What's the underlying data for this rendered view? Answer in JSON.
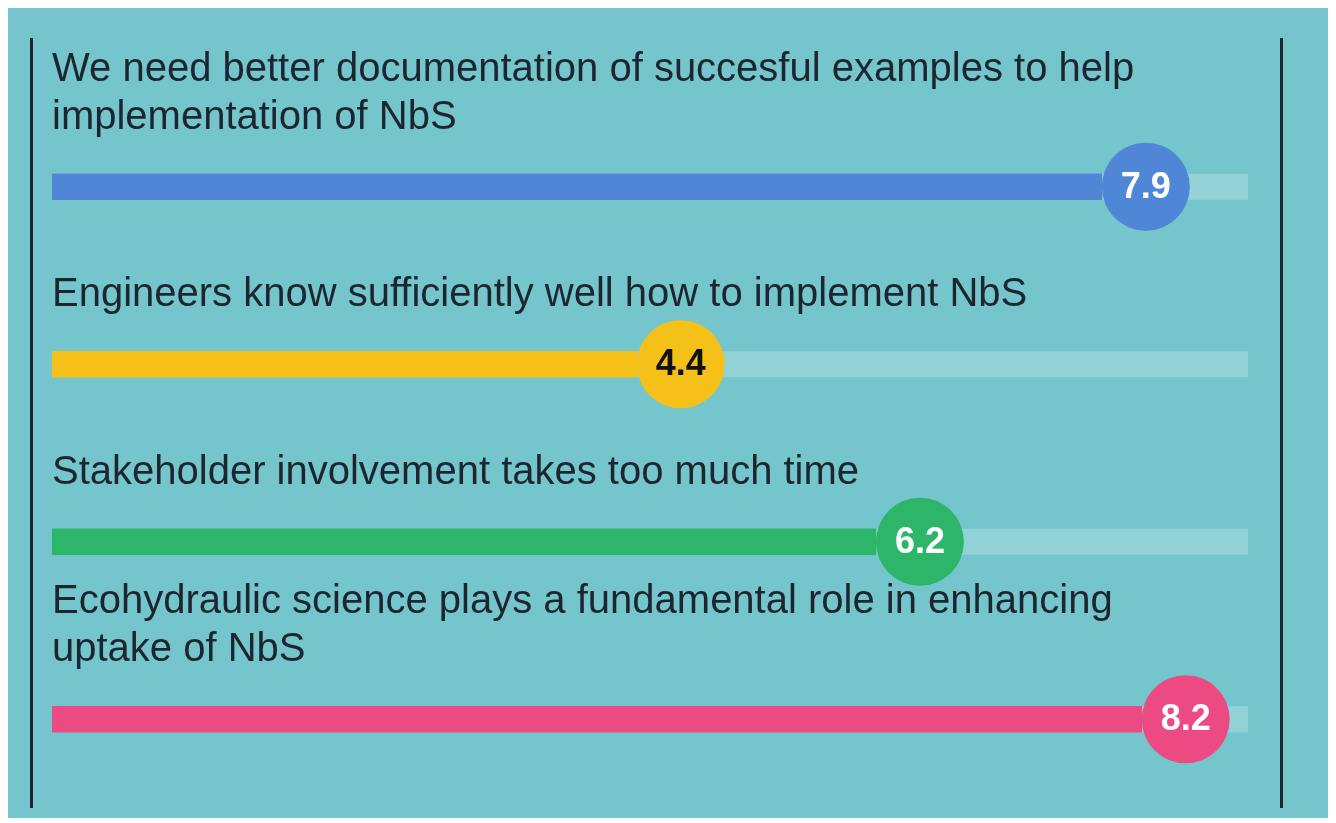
{
  "chart_data": {
    "type": "bar",
    "orientation": "horizontal",
    "categories": [
      "We need better documentation of succesful examples to help implementation of NbS",
      "Engineers know sufficiently well how to implement NbS",
      "Stakeholder involvement takes too much time",
      "Ecohydraulic science plays a fundamental role in enhancing uptake of NbS"
    ],
    "values": [
      7.9,
      4.4,
      6.2,
      8.2
    ],
    "colors": [
      "#4f86d6",
      "#f5c018",
      "#2db56a",
      "#ec4a82"
    ],
    "tick_labels": false,
    "data_labels": true
  }
}
